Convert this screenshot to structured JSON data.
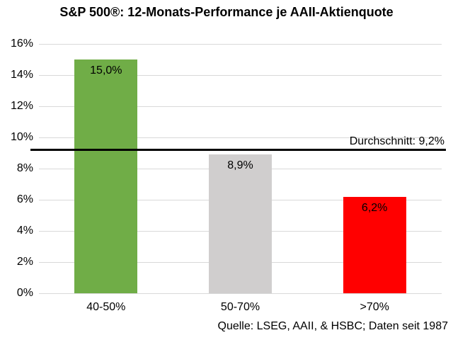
{
  "title": "S&P 500®: 12-Monats-Performance je AAII-Aktienquote",
  "source": "Quelle: LSEG, AAII, & HSBC; Daten seit 1987",
  "chart_data": {
    "type": "bar",
    "title": "S&P 500®: 12-Monats-Performance je AAII-Aktienquote",
    "categories": [
      "40-50%",
      "50-70%",
      ">70%"
    ],
    "values": [
      15.0,
      8.9,
      6.2
    ],
    "value_labels": [
      "15,0%",
      "8,9%",
      "6,2%"
    ],
    "bar_colors": [
      "#70AD47",
      "#D0CECE",
      "#FF0000"
    ],
    "xlabel": "",
    "ylabel": "",
    "ylim": [
      0,
      16
    ],
    "ytick_step": 2,
    "ytick_labels": [
      "0%",
      "2%",
      "4%",
      "6%",
      "8%",
      "10%",
      "12%",
      "14%",
      "16%"
    ],
    "grid": true,
    "gridline_color": "#D9D9D9",
    "legend": "none",
    "annotation": {
      "label": "Durchschnitt: 9,2%",
      "value": 9.2,
      "line_color": "#000000"
    },
    "caption": "Quelle: LSEG, AAII, & HSBC; Daten seit 1987"
  }
}
